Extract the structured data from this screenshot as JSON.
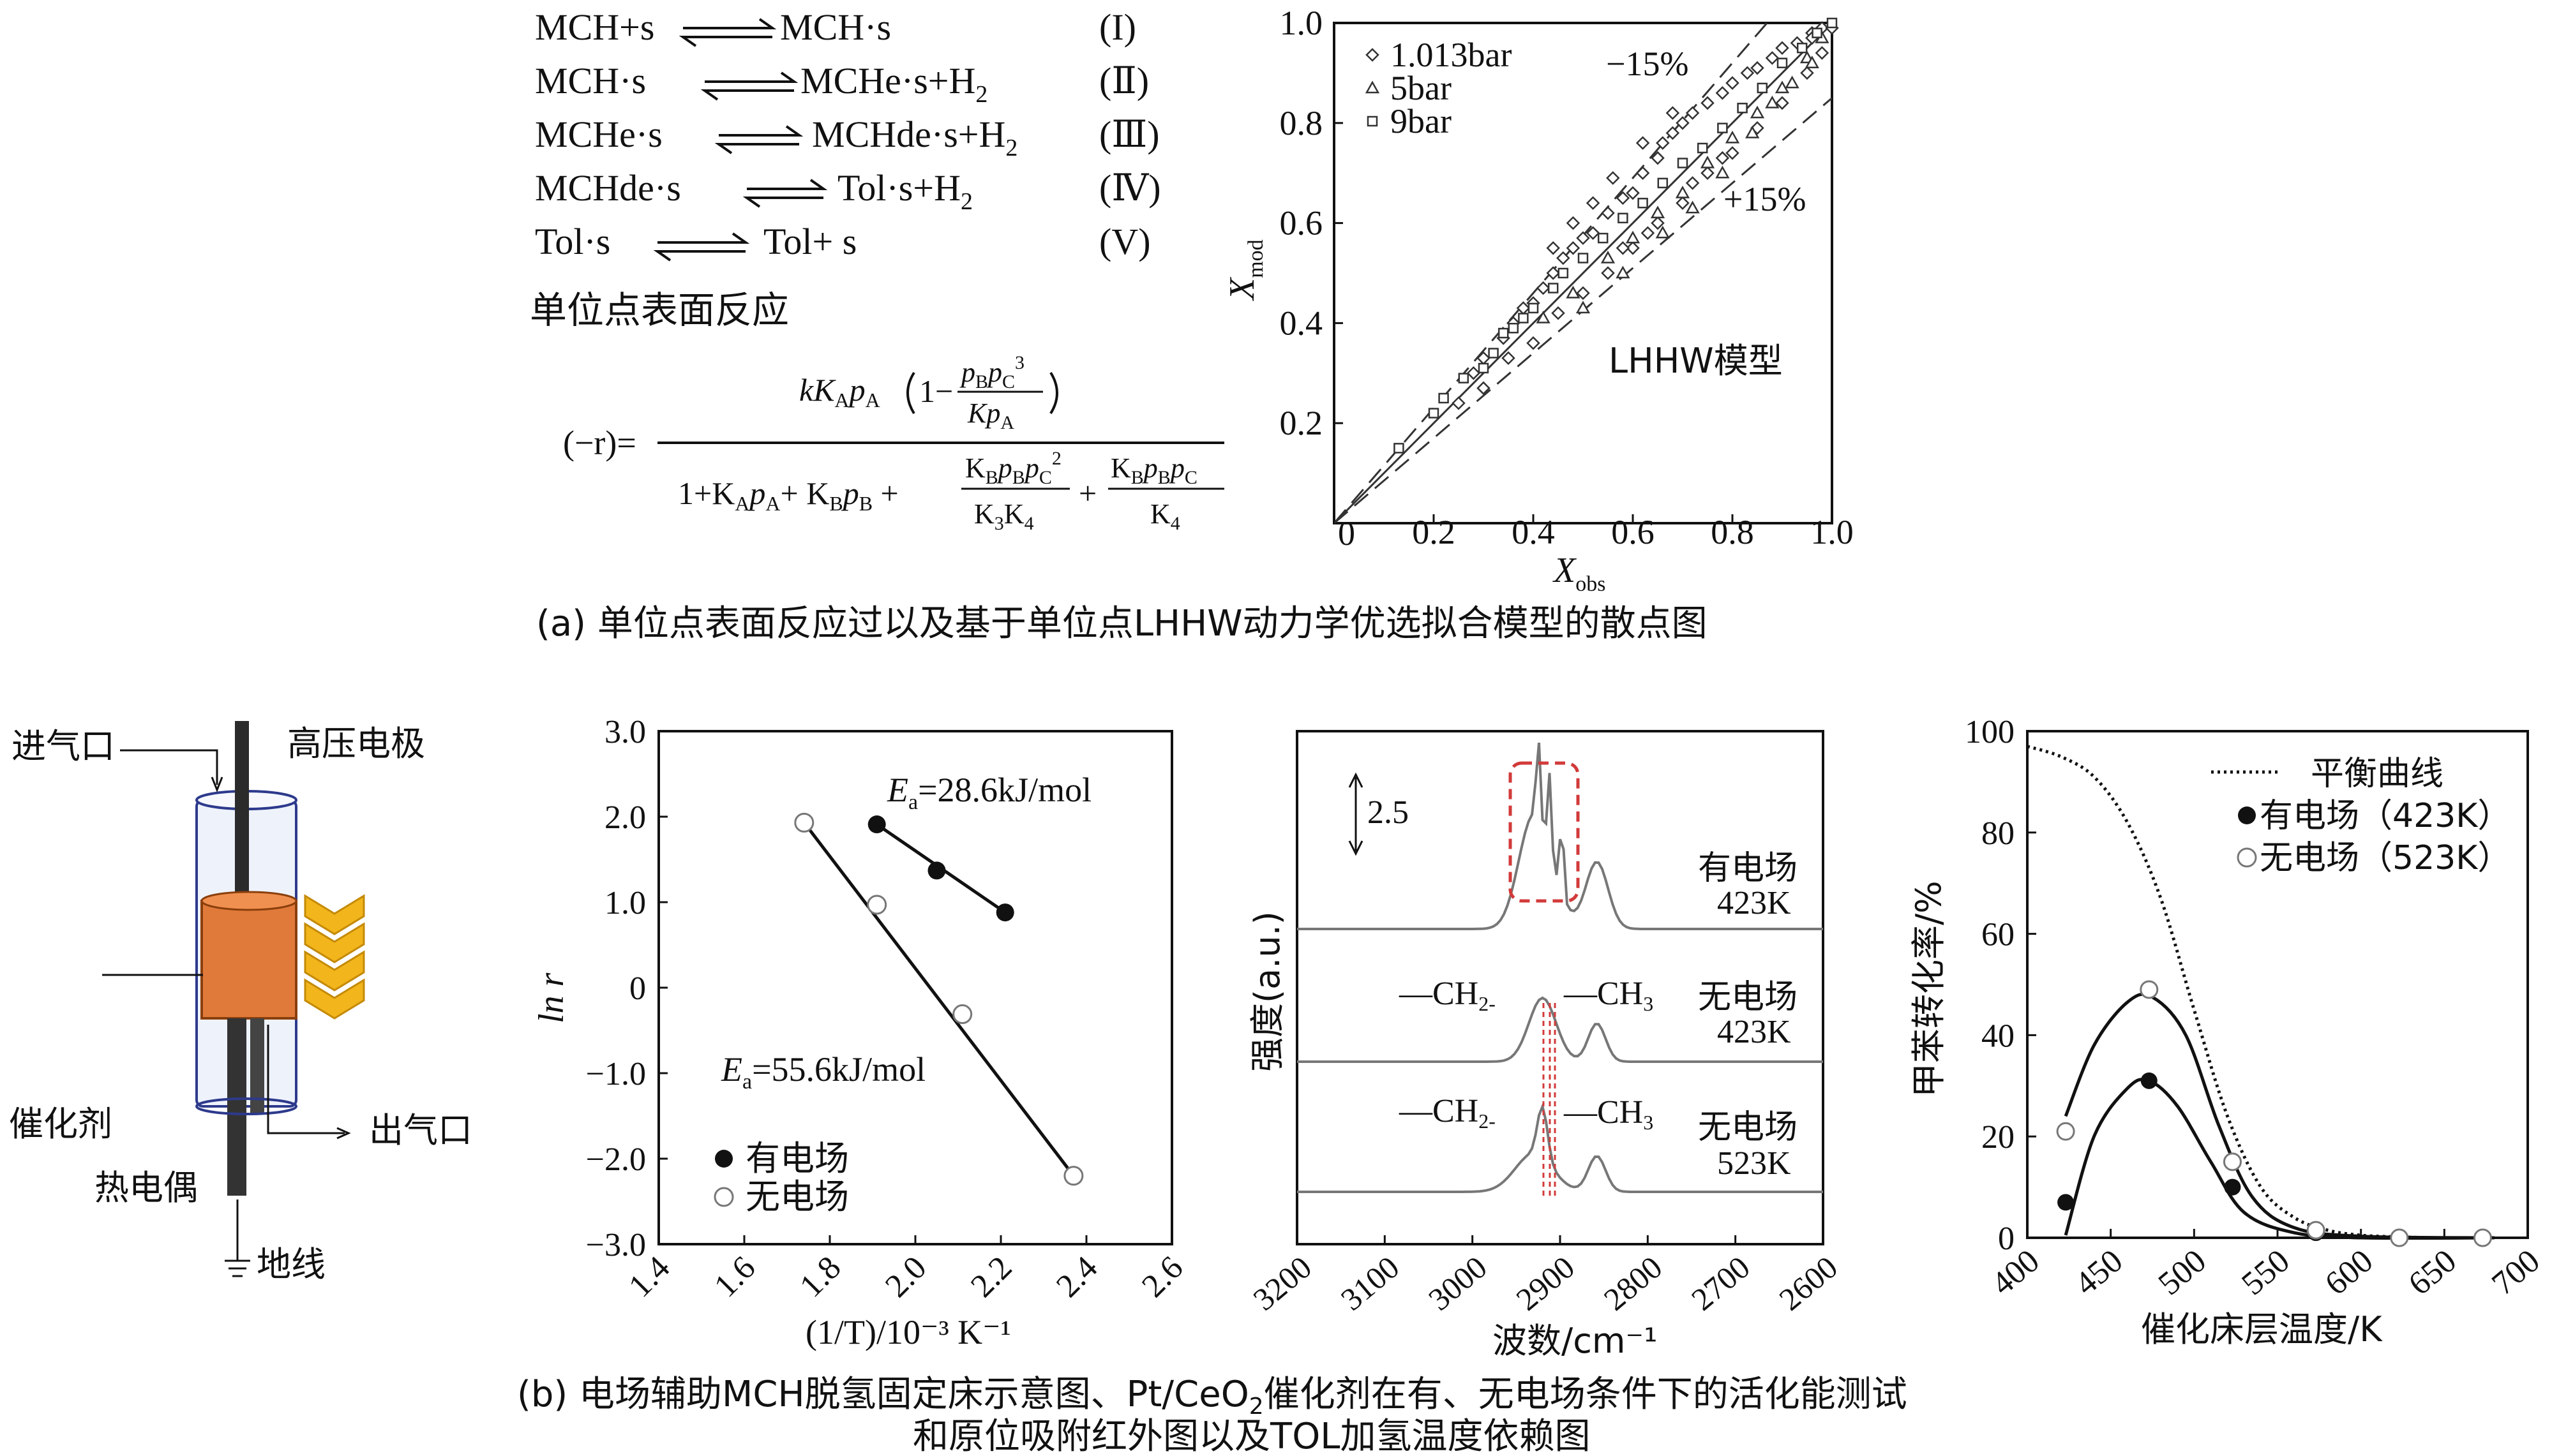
{
  "reactions": [
    {
      "lhs": "MCH+s",
      "rhs": "MCH·s",
      "rhs_h2": "",
      "num": "(I)"
    },
    {
      "lhs": "MCH·s",
      "rhs": "MCHe·s+H",
      "rhs_h2": "2",
      "num": "(Ⅱ)"
    },
    {
      "lhs": "MCHe·s",
      "rhs": "MCHde·s+H",
      "rhs_h2": "2",
      "num": "(Ⅲ)"
    },
    {
      "lhs": "MCHde·s",
      "rhs": "Tol·s+H",
      "rhs_h2": "2",
      "num": "(Ⅳ)"
    },
    {
      "lhs": "Tol·s",
      "rhs": "Tol+ s",
      "rhs_h2": "",
      "num": "(V)"
    }
  ],
  "surface_reaction_label": "单位点表面反应",
  "rate_equation": {
    "lhs": "(−r)=",
    "numerator": "kK_A p_A (1 − p_B p_C³ / K p_A)",
    "denominator": "1+K_A p_A + K_B p_B + K_B p_B p_C² / K_3 K_4 + K_B p_B p_C / K_4"
  },
  "captions": {
    "a": "(a) 单位点表面反应过以及基于单位点LHHW动力学优选拟合模型的散点图",
    "b_line1": "(b) 电场辅助MCH脱氢固定床示意图、Pt/CeO",
    "b_line1_sub": "2",
    "b_line1_end": "催化剂在有、无电场条件下的活化能测试",
    "b_line2": "和原位吸附红外图以及TOL加氢温度依赖图"
  },
  "schematic": {
    "inlet": "进气口",
    "electrode": "高压电极",
    "catalyst": "催化剂",
    "outlet": "出气口",
    "thermocouple": "热电偶",
    "ground": "地线",
    "colors": {
      "catalyst": "#e07a3a",
      "chevron": "#f2b51c"
    }
  },
  "chart_data": [
    {
      "id": "parity",
      "type": "scatter",
      "title": "",
      "xlabel": "X",
      "xlabel_sub": "obs",
      "ylabel": "X",
      "ylabel_sub": "mod",
      "xlim": [
        0,
        1.0
      ],
      "ylim": [
        0,
        1.0
      ],
      "xticks": [
        "0",
        "0.2",
        "0.4",
        "0.6",
        "0.8",
        "1.0"
      ],
      "yticks": [
        "0.2",
        "0.4",
        "0.6",
        "0.8",
        "1.0"
      ],
      "legend": [
        {
          "marker": "diamond",
          "label": "1.013bar"
        },
        {
          "marker": "triangle",
          "label": "5bar"
        },
        {
          "marker": "square",
          "label": "9bar"
        }
      ],
      "annotations": {
        "minus": "−15%",
        "plus": "+15%",
        "model": "LHHW模型"
      },
      "guide_lines": {
        "parity": 1.0,
        "upper": 1.15,
        "lower": 0.85
      },
      "series": [
        {
          "name": "1.013bar",
          "marker": "diamond",
          "points": [
            [
              0.28,
              0.3
            ],
            [
              0.3,
              0.33
            ],
            [
              0.34,
              0.37
            ],
            [
              0.36,
              0.4
            ],
            [
              0.38,
              0.43
            ],
            [
              0.4,
              0.44
            ],
            [
              0.42,
              0.47
            ],
            [
              0.44,
              0.5
            ],
            [
              0.46,
              0.53
            ],
            [
              0.48,
              0.55
            ],
            [
              0.5,
              0.57
            ],
            [
              0.52,
              0.58
            ],
            [
              0.55,
              0.62
            ],
            [
              0.58,
              0.65
            ],
            [
              0.6,
              0.66
            ],
            [
              0.62,
              0.7
            ],
            [
              0.65,
              0.73
            ],
            [
              0.66,
              0.76
            ],
            [
              0.68,
              0.78
            ],
            [
              0.7,
              0.8
            ],
            [
              0.72,
              0.82
            ],
            [
              0.75,
              0.84
            ],
            [
              0.78,
              0.86
            ],
            [
              0.8,
              0.88
            ],
            [
              0.83,
              0.9
            ],
            [
              0.85,
              0.91
            ],
            [
              0.88,
              0.93
            ],
            [
              0.9,
              0.95
            ],
            [
              0.93,
              0.96
            ],
            [
              0.96,
              0.98
            ],
            [
              0.98,
              0.99
            ],
            [
              1.0,
              0.99
            ],
            [
              0.4,
              0.36
            ],
            [
              0.45,
              0.42
            ],
            [
              0.5,
              0.46
            ],
            [
              0.55,
              0.5
            ],
            [
              0.6,
              0.55
            ],
            [
              0.65,
              0.6
            ],
            [
              0.7,
              0.64
            ],
            [
              0.75,
              0.7
            ],
            [
              0.8,
              0.74
            ],
            [
              0.85,
              0.79
            ],
            [
              0.9,
              0.84
            ],
            [
              0.95,
              0.9
            ],
            [
              0.52,
              0.64
            ],
            [
              0.48,
              0.6
            ],
            [
              0.56,
              0.69
            ],
            [
              0.44,
              0.55
            ],
            [
              0.62,
              0.76
            ],
            [
              0.68,
              0.82
            ],
            [
              0.35,
              0.33
            ],
            [
              0.3,
              0.27
            ],
            [
              0.25,
              0.24
            ],
            [
              0.58,
              0.55
            ],
            [
              0.63,
              0.58
            ],
            [
              0.72,
              0.68
            ],
            [
              0.78,
              0.73
            ],
            [
              0.98,
              0.94
            ],
            [
              0.96,
              0.97
            ]
          ]
        },
        {
          "name": "5bar",
          "marker": "triangle",
          "points": [
            [
              0.42,
              0.41
            ],
            [
              0.48,
              0.46
            ],
            [
              0.55,
              0.53
            ],
            [
              0.6,
              0.57
            ],
            [
              0.65,
              0.62
            ],
            [
              0.7,
              0.66
            ],
            [
              0.75,
              0.72
            ],
            [
              0.8,
              0.77
            ],
            [
              0.85,
              0.82
            ],
            [
              0.9,
              0.87
            ],
            [
              0.95,
              0.93
            ],
            [
              0.98,
              0.97
            ],
            [
              0.5,
              0.43
            ],
            [
              0.58,
              0.5
            ],
            [
              0.66,
              0.58
            ],
            [
              0.72,
              0.63
            ],
            [
              0.78,
              0.7
            ],
            [
              0.84,
              0.78
            ],
            [
              0.88,
              0.84
            ],
            [
              0.92,
              0.88
            ],
            [
              0.96,
              0.92
            ]
          ]
        },
        {
          "name": "9bar",
          "marker": "square",
          "points": [
            [
              0.13,
              0.15
            ],
            [
              0.2,
              0.22
            ],
            [
              0.22,
              0.25
            ],
            [
              0.26,
              0.29
            ],
            [
              0.3,
              0.31
            ],
            [
              0.32,
              0.34
            ],
            [
              0.34,
              0.38
            ],
            [
              0.36,
              0.39
            ],
            [
              0.38,
              0.41
            ],
            [
              0.4,
              0.43
            ],
            [
              0.44,
              0.47
            ],
            [
              0.46,
              0.5
            ],
            [
              0.5,
              0.53
            ],
            [
              0.54,
              0.57
            ],
            [
              0.58,
              0.61
            ],
            [
              0.62,
              0.64
            ],
            [
              0.66,
              0.68
            ],
            [
              0.7,
              0.72
            ],
            [
              0.74,
              0.75
            ],
            [
              0.78,
              0.79
            ],
            [
              0.82,
              0.83
            ],
            [
              0.86,
              0.87
            ],
            [
              0.9,
              0.92
            ],
            [
              0.94,
              0.95
            ],
            [
              0.97,
              0.98
            ],
            [
              1.0,
              1.0
            ]
          ]
        }
      ]
    },
    {
      "id": "arrhenius",
      "type": "scatter",
      "xlabel": "(1/T)/10⁻³ K⁻¹",
      "ylabel": "ln r",
      "xlim": [
        1.4,
        2.6
      ],
      "ylim": [
        -3.0,
        3.0
      ],
      "xticks": [
        "1.4",
        "1.6",
        "1.8",
        "2.0",
        "2.2",
        "2.4",
        "2.6"
      ],
      "yticks": [
        "3.0",
        "2.0",
        "1.0",
        "0",
        "−1.0",
        "−2.0",
        "−3.0"
      ],
      "annotations": {
        "ea_with": "=28.6kJ/mol",
        "ea_without": "=55.6kJ/mol",
        "ea_symbol": "E",
        "ea_sub": "a"
      },
      "legend": [
        {
          "marker": "filled-circle",
          "label": "有电场"
        },
        {
          "marker": "open-circle",
          "label": "无电场"
        }
      ],
      "series": [
        {
          "name": "有电场",
          "marker": "filled",
          "points": [
            [
              1.91,
              1.91
            ],
            [
              2.05,
              1.37
            ],
            [
              2.21,
              0.88
            ]
          ]
        },
        {
          "name": "无电场",
          "marker": "open",
          "points": [
            [
              1.74,
              1.93
            ],
            [
              1.91,
              0.97
            ],
            [
              2.11,
              -0.31
            ],
            [
              2.37,
              -2.2
            ]
          ]
        }
      ]
    },
    {
      "id": "drifts",
      "type": "line",
      "xlabel": "波数/cm⁻¹",
      "ylabel": "强度(a.u.)",
      "xlim": [
        3200,
        2600
      ],
      "xticks": [
        "3200",
        "3100",
        "3000",
        "2900",
        "2800",
        "2700",
        "2600"
      ],
      "scale_bar": "2.5",
      "labels": {
        "ch2": "—CH",
        "ch2_sub": "2-",
        "ch3": "—CH",
        "ch3_sub": "3"
      },
      "series": [
        {
          "name": "有电场",
          "temp": "423K"
        },
        {
          "name": "无电场",
          "temp": "423K"
        },
        {
          "name": "无电场",
          "temp": "523K"
        }
      ]
    },
    {
      "id": "tol",
      "type": "line",
      "xlabel": "催化床层温度/K",
      "ylabel": "甲苯转化率/%",
      "xlim": [
        400,
        700
      ],
      "ylim": [
        0,
        100
      ],
      "xticks": [
        "400",
        "450",
        "500",
        "550",
        "600",
        "650",
        "700"
      ],
      "yticks": [
        "0",
        "20",
        "40",
        "60",
        "80",
        "100"
      ],
      "legend": [
        {
          "marker": "dotted-line",
          "label": "平衡曲线"
        },
        {
          "marker": "filled-circle",
          "label": "有电场（423K）"
        },
        {
          "marker": "open-circle",
          "label": "无电场（523K）"
        }
      ],
      "series": [
        {
          "name": "平衡曲线",
          "x": [
            400,
            420,
            440,
            460,
            480,
            500,
            520,
            540,
            560,
            580,
            600,
            620,
            640
          ],
          "y": [
            97,
            95,
            91,
            82,
            67,
            45,
            24,
            10,
            4,
            1.5,
            0.5,
            0.2,
            0
          ]
        },
        {
          "name": "有电场（423K）",
          "x": [
            423,
            473,
            523,
            573,
            623,
            673
          ],
          "y": [
            7,
            31,
            10,
            1,
            0,
            0
          ]
        },
        {
          "name": "无电场（523K）",
          "x": [
            423,
            473,
            523,
            573,
            623,
            673
          ],
          "y": [
            21,
            49,
            15,
            1.5,
            0,
            0
          ]
        }
      ]
    }
  ]
}
